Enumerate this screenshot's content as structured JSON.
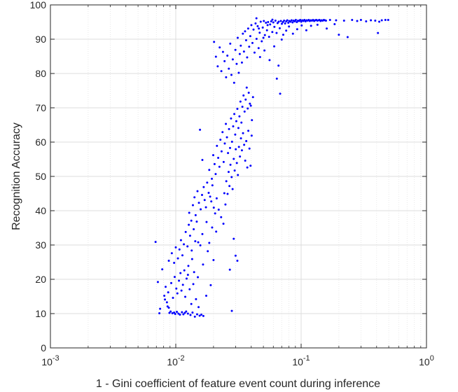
{
  "chart_data": {
    "type": "scatter",
    "title": "",
    "xlabel": "1 - Gini coefficient of feature event count during inference",
    "ylabel": "Recognition Accuracy",
    "xscale": "log",
    "xlim": [
      0.001,
      1
    ],
    "ylim": [
      0,
      100
    ],
    "xticks": [
      {
        "value": 0.001,
        "base": "10",
        "exp": "-3"
      },
      {
        "value": 0.01,
        "base": "10",
        "exp": "-2"
      },
      {
        "value": 0.1,
        "base": "10",
        "exp": "-1"
      },
      {
        "value": 1,
        "base": "10",
        "exp": "0"
      }
    ],
    "yticks": [
      "0",
      "10",
      "20",
      "30",
      "40",
      "50",
      "60",
      "70",
      "80",
      "90",
      "100"
    ],
    "grid": true,
    "minor_grid_x": true,
    "marker_color": "#0000ff",
    "points": [
      [
        0.0069,
        30.9
      ],
      [
        0.0072,
        19.2
      ],
      [
        0.0075,
        11.4
      ],
      [
        0.0074,
        10.1
      ],
      [
        0.0078,
        22.9
      ],
      [
        0.0081,
        15.2
      ],
      [
        0.0082,
        14.1
      ],
      [
        0.0085,
        13.3
      ],
      [
        0.0086,
        12.1
      ],
      [
        0.0088,
        11.7
      ],
      [
        0.0089,
        10.2
      ],
      [
        0.0091,
        10.6
      ],
      [
        0.0094,
        10.1
      ],
      [
        0.0097,
        10.3
      ],
      [
        0.0099,
        9.9
      ],
      [
        0.0102,
        10.5
      ],
      [
        0.0105,
        10.0
      ],
      [
        0.0108,
        9.7
      ],
      [
        0.0112,
        10.4
      ],
      [
        0.0115,
        9.8
      ],
      [
        0.0118,
        10.2
      ],
      [
        0.0121,
        10.6
      ],
      [
        0.0125,
        10.0
      ],
      [
        0.0131,
        9.6
      ],
      [
        0.0136,
        10.3
      ],
      [
        0.0142,
        9.1
      ],
      [
        0.0148,
        9.8
      ],
      [
        0.0155,
        9.4
      ],
      [
        0.016,
        9.7
      ],
      [
        0.0166,
        9.3
      ],
      [
        0.0083,
        17.8
      ],
      [
        0.0087,
        16.2
      ],
      [
        0.0092,
        18.9
      ],
      [
        0.0095,
        14.6
      ],
      [
        0.0098,
        20.7
      ],
      [
        0.0101,
        17.3
      ],
      [
        0.0103,
        15.9
      ],
      [
        0.0106,
        19.6
      ],
      [
        0.0109,
        21.8
      ],
      [
        0.0111,
        16.7
      ],
      [
        0.0114,
        18.4
      ],
      [
        0.0117,
        22.6
      ],
      [
        0.0119,
        14.9
      ],
      [
        0.0122,
        20.2
      ],
      [
        0.0126,
        23.9
      ],
      [
        0.0129,
        17.1
      ],
      [
        0.0133,
        12.8
      ],
      [
        0.0138,
        18.6
      ],
      [
        0.0145,
        14.2
      ],
      [
        0.0152,
        11.9
      ],
      [
        0.0088,
        25.4
      ],
      [
        0.0093,
        27.6
      ],
      [
        0.0097,
        24.8
      ],
      [
        0.01,
        29.3
      ],
      [
        0.0104,
        26.1
      ],
      [
        0.0107,
        28.7
      ],
      [
        0.011,
        31.4
      ],
      [
        0.0113,
        27.0
      ],
      [
        0.0116,
        30.2
      ],
      [
        0.012,
        33.8
      ],
      [
        0.0124,
        29.6
      ],
      [
        0.0127,
        35.9
      ],
      [
        0.013,
        32.7
      ],
      [
        0.0134,
        28.4
      ],
      [
        0.0139,
        34.6
      ],
      [
        0.0143,
        31.1
      ],
      [
        0.0147,
        36.8
      ],
      [
        0.0151,
        30.8
      ],
      [
        0.0157,
        29.9
      ],
      [
        0.0163,
        33.2
      ],
      [
        0.0128,
        39.4
      ],
      [
        0.0133,
        37.1
      ],
      [
        0.0137,
        41.6
      ],
      [
        0.0141,
        43.9
      ],
      [
        0.0144,
        38.7
      ],
      [
        0.0149,
        45.7
      ],
      [
        0.0153,
        42.3
      ],
      [
        0.0158,
        40.4
      ],
      [
        0.0162,
        44.6
      ],
      [
        0.0167,
        46.9
      ],
      [
        0.017,
        43.1
      ],
      [
        0.0174,
        41.0
      ],
      [
        0.0178,
        48.2
      ],
      [
        0.0183,
        45.2
      ],
      [
        0.0188,
        44.1
      ],
      [
        0.0192,
        42.7
      ],
      [
        0.0196,
        47.4
      ],
      [
        0.0201,
        40.9
      ],
      [
        0.0206,
        39.2
      ],
      [
        0.0212,
        43.6
      ],
      [
        0.0156,
        63.6
      ],
      [
        0.0163,
        54.8
      ],
      [
        0.0176,
        36.7
      ],
      [
        0.0185,
        51.9
      ],
      [
        0.0194,
        49.3
      ],
      [
        0.0199,
        56.2
      ],
      [
        0.0204,
        53.6
      ],
      [
        0.0208,
        50.7
      ],
      [
        0.0213,
        58.9
      ],
      [
        0.0218,
        55.4
      ],
      [
        0.0223,
        52.8
      ],
      [
        0.0227,
        60.7
      ],
      [
        0.0232,
        57.3
      ],
      [
        0.0236,
        62.9
      ],
      [
        0.0241,
        54.2
      ],
      [
        0.0246,
        59.6
      ],
      [
        0.0251,
        65.3
      ],
      [
        0.0256,
        61.4
      ],
      [
        0.0261,
        56.8
      ],
      [
        0.0266,
        63.8
      ],
      [
        0.0271,
        58.3
      ],
      [
        0.0276,
        66.9
      ],
      [
        0.0281,
        60.1
      ],
      [
        0.0287,
        64.6
      ],
      [
        0.0293,
        68.2
      ],
      [
        0.0298,
        62.2
      ],
      [
        0.0304,
        66.1
      ],
      [
        0.031,
        69.7
      ],
      [
        0.0316,
        64.1
      ],
      [
        0.0322,
        67.5
      ],
      [
        0.0328,
        71.8
      ],
      [
        0.0334,
        65.7
      ],
      [
        0.034,
        70.3
      ],
      [
        0.0347,
        73.6
      ],
      [
        0.0354,
        68.9
      ],
      [
        0.0361,
        72.4
      ],
      [
        0.0368,
        75.9
      ],
      [
        0.0375,
        69.8
      ],
      [
        0.0382,
        74.4
      ],
      [
        0.039,
        71.2
      ],
      [
        0.0397,
        70.6
      ],
      [
        0.0405,
        66.4
      ],
      [
        0.0413,
        73.1
      ],
      [
        0.0244,
        45.1
      ],
      [
        0.0249,
        41.8
      ],
      [
        0.0253,
        48.6
      ],
      [
        0.0259,
        44.9
      ],
      [
        0.0264,
        51.3
      ],
      [
        0.0268,
        47.2
      ],
      [
        0.0273,
        53.4
      ],
      [
        0.0279,
        49.8
      ],
      [
        0.0284,
        46.3
      ],
      [
        0.029,
        55.1
      ],
      [
        0.0295,
        51.7
      ],
      [
        0.0301,
        57.9
      ],
      [
        0.0307,
        53.9
      ],
      [
        0.0313,
        50.4
      ],
      [
        0.0319,
        58.6
      ],
      [
        0.0325,
        55.8
      ],
      [
        0.0331,
        61.1
      ],
      [
        0.0337,
        57.6
      ],
      [
        0.0344,
        62.6
      ],
      [
        0.0351,
        59.2
      ],
      [
        0.0358,
        54.6
      ],
      [
        0.0365,
        60.3
      ],
      [
        0.0372,
        52.6
      ],
      [
        0.0379,
        63.3
      ],
      [
        0.0387,
        58.1
      ],
      [
        0.0395,
        53.1
      ],
      [
        0.0403,
        61.9
      ],
      [
        0.0202,
        89.2
      ],
      [
        0.0209,
        84.9
      ],
      [
        0.0216,
        82.1
      ],
      [
        0.0224,
        87.6
      ],
      [
        0.0231,
        80.7
      ],
      [
        0.0238,
        86.3
      ],
      [
        0.0245,
        83.6
      ],
      [
        0.0252,
        78.9
      ],
      [
        0.0258,
        85.2
      ],
      [
        0.0265,
        81.4
      ],
      [
        0.0272,
        88.7
      ],
      [
        0.0278,
        79.6
      ],
      [
        0.0285,
        84.1
      ],
      [
        0.0292,
        77.3
      ],
      [
        0.0299,
        86.9
      ],
      [
        0.0306,
        82.8
      ],
      [
        0.0312,
        90.4
      ],
      [
        0.0318,
        80.2
      ],
      [
        0.0324,
        85.7
      ],
      [
        0.033,
        88.1
      ],
      [
        0.0337,
        83.2
      ],
      [
        0.0343,
        91.6
      ],
      [
        0.035,
        86.4
      ],
      [
        0.0357,
        92.3
      ],
      [
        0.0364,
        89.7
      ],
      [
        0.0371,
        84.7
      ],
      [
        0.0378,
        93.1
      ],
      [
        0.0385,
        87.8
      ],
      [
        0.0393,
        90.9
      ],
      [
        0.0401,
        94.1
      ],
      [
        0.0409,
        88.9
      ],
      [
        0.0417,
        92.8
      ],
      [
        0.0425,
        86.1
      ],
      [
        0.0433,
        94.6
      ],
      [
        0.0441,
        90.1
      ],
      [
        0.045,
        93.8
      ],
      [
        0.0458,
        87.4
      ],
      [
        0.0467,
        91.9
      ],
      [
        0.0476,
        95.1
      ],
      [
        0.0485,
        89.4
      ],
      [
        0.0494,
        93.4
      ],
      [
        0.0504,
        95.3
      ],
      [
        0.0514,
        91.2
      ],
      [
        0.0524,
        94.8
      ],
      [
        0.0534,
        92.6
      ],
      [
        0.0545,
        95.0
      ],
      [
        0.0555,
        90.7
      ],
      [
        0.0566,
        94.3
      ],
      [
        0.0577,
        95.2
      ],
      [
        0.0589,
        92.1
      ],
      [
        0.06,
        94.9
      ],
      [
        0.0612,
        93.6
      ],
      [
        0.0624,
        95.4
      ],
      [
        0.0637,
        91.8
      ],
      [
        0.0649,
        94.7
      ],
      [
        0.0662,
        95.1
      ],
      [
        0.0675,
        93.2
      ],
      [
        0.0689,
        95.3
      ],
      [
        0.0702,
        94.5
      ],
      [
        0.0716,
        95.0
      ],
      [
        0.0731,
        95.4
      ],
      [
        0.0745,
        94.6
      ],
      [
        0.076,
        95.2
      ],
      [
        0.0775,
        95.5
      ],
      [
        0.079,
        94.8
      ],
      [
        0.0806,
        95.3
      ],
      [
        0.0822,
        95.1
      ],
      [
        0.0839,
        95.5
      ],
      [
        0.0855,
        94.9
      ],
      [
        0.0872,
        95.4
      ],
      [
        0.089,
        95.2
      ],
      [
        0.0907,
        95.6
      ],
      [
        0.0925,
        95.0
      ],
      [
        0.0944,
        95.4
      ],
      [
        0.0963,
        95.3
      ],
      [
        0.0982,
        95.6
      ],
      [
        0.1001,
        95.1
      ],
      [
        0.1021,
        95.5
      ],
      [
        0.1042,
        95.3
      ],
      [
        0.1062,
        95.6
      ],
      [
        0.1084,
        95.2
      ],
      [
        0.1105,
        95.5
      ],
      [
        0.1127,
        95.4
      ],
      [
        0.115,
        95.6
      ],
      [
        0.1173,
        95.3
      ],
      [
        0.1196,
        95.5
      ],
      [
        0.122,
        95.4
      ],
      [
        0.1245,
        95.6
      ],
      [
        0.127,
        95.3
      ],
      [
        0.1295,
        95.5
      ],
      [
        0.1321,
        95.6
      ],
      [
        0.1347,
        95.4
      ],
      [
        0.1374,
        95.5
      ],
      [
        0.1401,
        95.6
      ],
      [
        0.1429,
        95.3
      ],
      [
        0.1458,
        95.5
      ],
      [
        0.1487,
        95.4
      ],
      [
        0.1517,
        95.6
      ],
      [
        0.1547,
        95.5
      ],
      [
        0.1578,
        95.4
      ],
      [
        0.047,
        84.8
      ],
      [
        0.051,
        86.7
      ],
      [
        0.056,
        83.9
      ],
      [
        0.061,
        87.9
      ],
      [
        0.066,
        82.3
      ],
      [
        0.068,
        74.1
      ],
      [
        0.064,
        78.5
      ],
      [
        0.07,
        89.9
      ],
      [
        0.072,
        91.3
      ],
      [
        0.076,
        92.5
      ],
      [
        0.08,
        93.7
      ],
      [
        0.086,
        91.6
      ],
      [
        0.093,
        92.9
      ],
      [
        0.101,
        94.0
      ],
      [
        0.11,
        92.6
      ],
      [
        0.12,
        93.9
      ],
      [
        0.135,
        94.2
      ],
      [
        0.16,
        93.1
      ],
      [
        0.185,
        94.4
      ],
      [
        0.2,
        91.3
      ],
      [
        0.22,
        95.4
      ],
      [
        0.235,
        90.6
      ],
      [
        0.255,
        95.6
      ],
      [
        0.28,
        95.3
      ],
      [
        0.3,
        95.6
      ],
      [
        0.33,
        95.2
      ],
      [
        0.36,
        95.5
      ],
      [
        0.39,
        95.4
      ],
      [
        0.41,
        91.8
      ],
      [
        0.42,
        95.1
      ],
      [
        0.44,
        95.5
      ],
      [
        0.47,
        95.6
      ],
      [
        0.495,
        95.6
      ],
      [
        0.19,
        95.5
      ],
      [
        0.17,
        95.6
      ],
      [
        0.044,
        96.1
      ],
      [
        0.046,
        93.1
      ],
      [
        0.05,
        90.4
      ],
      [
        0.054,
        94.1
      ],
      [
        0.059,
        95.7
      ],
      [
        0.029,
        31.8
      ],
      [
        0.03,
        26.9
      ],
      [
        0.031,
        25.4
      ],
      [
        0.028,
        10.8
      ],
      [
        0.027,
        22.8
      ],
      [
        0.02,
        25.6
      ],
      [
        0.019,
        18.3
      ],
      [
        0.0175,
        15.2
      ],
      [
        0.0185,
        30.6
      ],
      [
        0.022,
        40.3
      ],
      [
        0.023,
        38.1
      ],
      [
        0.024,
        36.2
      ],
      [
        0.021,
        33.9
      ],
      [
        0.0195,
        35.1
      ],
      [
        0.018,
        28.2
      ],
      [
        0.0165,
        24.3
      ],
      [
        0.015,
        20.6
      ],
      [
        0.014,
        22.1
      ],
      [
        0.0135,
        25.9
      ],
      [
        0.0125,
        21.3
      ]
    ]
  }
}
